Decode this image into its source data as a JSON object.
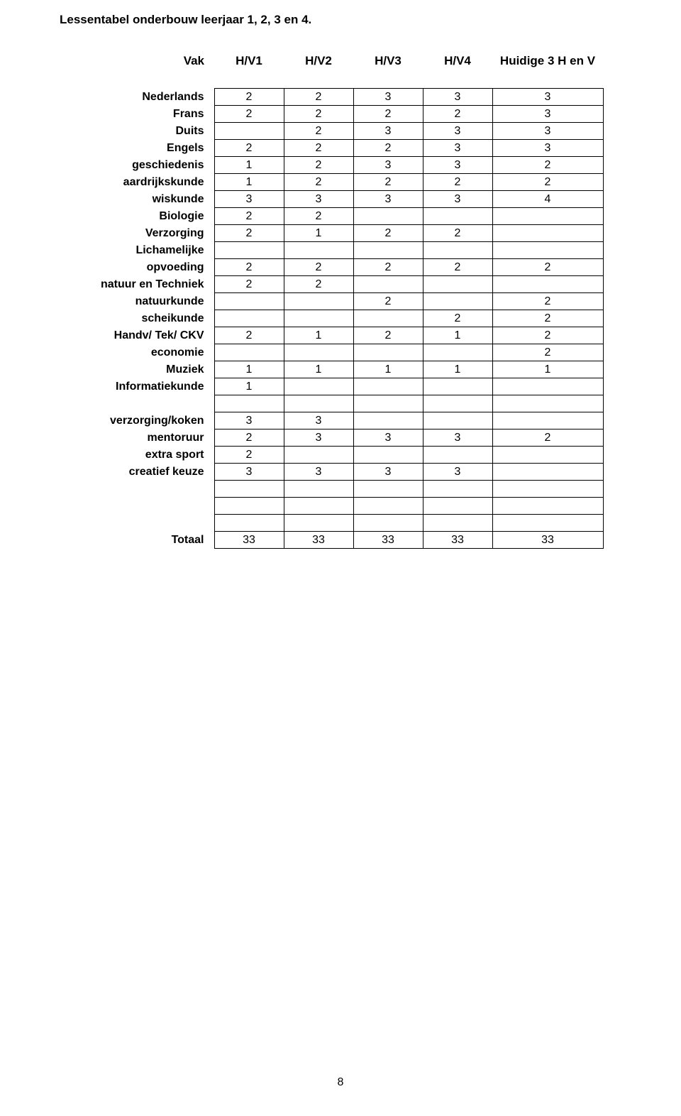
{
  "page_title": "Lessentabel onderbouw leerjaar 1, 2, 3 en 4.",
  "header": {
    "vak": "Vak",
    "col1": "H/V1",
    "col2": "H/V2",
    "col3": "H/V3",
    "col4": "H/V4",
    "col5": "Huidige 3 H en V"
  },
  "rows_main": [
    {
      "label": "Nederlands",
      "v": [
        "2",
        "2",
        "3",
        "3",
        "3"
      ]
    },
    {
      "label": "Frans",
      "v": [
        "2",
        "2",
        "2",
        "2",
        "3"
      ]
    },
    {
      "label": "Duits",
      "v": [
        "",
        "2",
        "3",
        "3",
        "3"
      ]
    },
    {
      "label": "Engels",
      "v": [
        "2",
        "2",
        "2",
        "3",
        "3"
      ]
    },
    {
      "label": "geschiedenis",
      "v": [
        "1",
        "2",
        "3",
        "3",
        "2"
      ]
    },
    {
      "label": "aardrijkskunde",
      "v": [
        "1",
        "2",
        "2",
        "2",
        "2"
      ]
    },
    {
      "label": "wiskunde",
      "v": [
        "3",
        "3",
        "3",
        "3",
        "4"
      ]
    },
    {
      "label": "Biologie",
      "v": [
        "2",
        "2",
        "",
        "",
        ""
      ]
    },
    {
      "label": "Verzorging",
      "v": [
        "2",
        "1",
        "2",
        "2",
        ""
      ]
    },
    {
      "label": "Lichamelijke",
      "v": [
        "",
        "",
        "",
        "",
        ""
      ]
    },
    {
      "label": "opvoeding",
      "v": [
        "2",
        "2",
        "2",
        "2",
        "2"
      ]
    },
    {
      "label": "natuur en Techniek",
      "v": [
        "2",
        "2",
        "",
        "",
        ""
      ]
    },
    {
      "label": "natuurkunde",
      "v": [
        "",
        "",
        "2",
        "",
        "2"
      ]
    },
    {
      "label": "scheikunde",
      "v": [
        "",
        "",
        "",
        "2",
        "2"
      ]
    },
    {
      "label": "Handv/ Tek/ CKV",
      "v": [
        "2",
        "1",
        "2",
        "1",
        "2"
      ]
    },
    {
      "label": "economie",
      "v": [
        "",
        "",
        "",
        "",
        "2"
      ]
    },
    {
      "label": "Muziek",
      "v": [
        "1",
        "1",
        "1",
        "1",
        "1"
      ]
    },
    {
      "label": "Informatiekunde",
      "v": [
        "1",
        "",
        "",
        "",
        ""
      ]
    }
  ],
  "rows_extra": [
    {
      "label": "verzorging/koken",
      "v": [
        "3",
        "3",
        "",
        "",
        ""
      ]
    },
    {
      "label": "mentoruur",
      "v": [
        "2",
        "3",
        "3",
        "3",
        "2"
      ]
    },
    {
      "label": "extra sport",
      "v": [
        "2",
        "",
        "",
        "",
        ""
      ]
    },
    {
      "label": "creatief keuze",
      "v": [
        "3",
        "3",
        "3",
        "3",
        ""
      ]
    }
  ],
  "total": {
    "label": "Totaal",
    "v": [
      "33",
      "33",
      "33",
      "33",
      "33"
    ]
  },
  "page_number": "8"
}
